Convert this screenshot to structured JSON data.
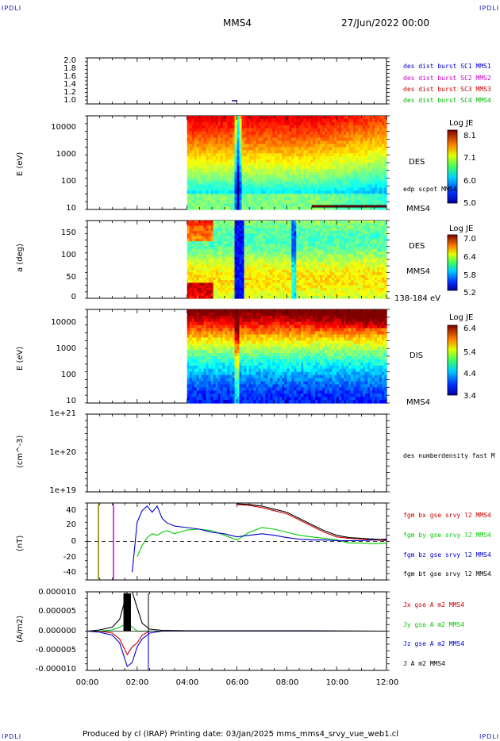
{
  "header": {
    "corner_tl": "IPDLI",
    "corner_tr": "IPDLI",
    "corner_bl": "IPDLI",
    "corner_br": "IPDLI",
    "spacecraft": "MMS4",
    "datetime": "27/Jun/2022 00:00"
  },
  "footer": {
    "text": "Produced by cl (IRAP)   Printing date: 03/Jan/2025   mms_mms4_srvy_vue_web1.cl"
  },
  "colors": {
    "mms1": "#0000cc",
    "mms2": "#cc00cc",
    "mms3": "#cc0000",
    "mms4": "#00bb00",
    "bx": "#cc0000",
    "by": "#00cc00",
    "bz": "#0000cc",
    "bt": "#000000"
  },
  "chart_data": [
    {
      "type": "line",
      "title": "",
      "ylabel": "",
      "ylim": [
        1.0,
        2.0
      ],
      "yticks": [
        "2.0",
        "1.8",
        "1.6",
        "1.4",
        "1.2",
        "1.0"
      ],
      "legend": [
        {
          "label": "des dist burst SC1 MMS1",
          "color": "#0000cc"
        },
        {
          "label": "des dist burst SC2 MMS2",
          "color": "#cc00cc"
        },
        {
          "label": "des dist burst SC3 MMS3",
          "color": "#cc0000"
        },
        {
          "label": "des dist burst SC4 MMS4",
          "color": "#00bb00"
        }
      ]
    },
    {
      "type": "heatmap",
      "ylabel": "E (eV)",
      "yscale": "log",
      "ylim": [
        10,
        30000
      ],
      "yticks": [
        "10000",
        "1000",
        "100",
        "10"
      ],
      "instrument": "DES",
      "spacecraft": "MMS4",
      "overlay_label": "edp scpot MMS4",
      "colorbar": {
        "title": "Log JE",
        "ticks": [
          "8.1",
          "7.1",
          "6.0",
          "5.0"
        ],
        "range": [
          5.0,
          8.1
        ]
      },
      "data_start_hour": 4.0
    },
    {
      "type": "heatmap",
      "ylabel": "a (deg)",
      "ylim": [
        0,
        180
      ],
      "yticks": [
        "150",
        "100",
        "50",
        "0"
      ],
      "instrument": "DES",
      "spacecraft": "MMS4",
      "energy_range": "138-184 eV",
      "colorbar": {
        "title": "Log JE",
        "ticks": [
          "7.0",
          "6.4",
          "5.8",
          "5.2"
        ],
        "range": [
          5.2,
          7.0
        ]
      },
      "data_start_hour": 4.0
    },
    {
      "type": "heatmap",
      "ylabel": "E (eV)",
      "yscale": "log",
      "ylim": [
        10,
        30000
      ],
      "yticks": [
        "10000",
        "1000",
        "100",
        "10"
      ],
      "instrument": "DIS",
      "spacecraft": "MMS4",
      "colorbar": {
        "title": "Log JE",
        "ticks": [
          "6.4",
          "5.4",
          "4.4",
          "3.4"
        ],
        "range": [
          3.4,
          6.4
        ]
      },
      "data_start_hour": 4.0
    },
    {
      "type": "line",
      "ylabel": "(cm^-3)",
      "yscale": "log",
      "yticks": [
        "1e+21",
        "1e+20",
        "1e+19"
      ],
      "legend": [
        {
          "label": "des numberdensity fast M",
          "color": "#000000"
        }
      ]
    },
    {
      "type": "line",
      "ylabel": "(nT)",
      "ylim": [
        -50,
        50
      ],
      "yticks": [
        "40",
        "20",
        "0",
        "-20",
        "-40"
      ],
      "x": [
        0.0,
        0.4,
        0.5,
        1.0,
        1.1,
        1.8,
        2.0,
        2.2,
        2.4,
        2.6,
        2.8,
        3.0,
        3.2,
        3.5,
        4.0,
        4.5,
        5.0,
        5.5,
        6.0,
        6.5,
        7.0,
        7.5,
        8.0,
        8.5,
        9.0,
        9.5,
        10.0,
        10.5,
        11.0,
        11.5,
        12.0
      ],
      "series": [
        {
          "name": "fgm bx gse srvy l2 MMS4",
          "color": "#cc0000",
          "values": [
            null,
            null,
            null,
            null,
            null,
            null,
            null,
            null,
            null,
            null,
            null,
            null,
            null,
            null,
            null,
            null,
            null,
            null,
            48,
            47,
            44,
            40,
            36,
            28,
            20,
            12,
            6,
            4,
            3,
            2,
            1
          ]
        },
        {
          "name": "fgm by gse srvy l2 MMS4",
          "color": "#00cc00",
          "values": [
            null,
            null,
            null,
            null,
            null,
            null,
            -20,
            -5,
            5,
            10,
            8,
            12,
            14,
            10,
            15,
            16,
            14,
            8,
            2,
            12,
            18,
            16,
            12,
            8,
            6,
            4,
            2,
            -2,
            -2,
            -3,
            -2
          ]
        },
        {
          "name": "fgm bz gse srvy l2 MMS4",
          "color": "#0000cc",
          "values": [
            null,
            null,
            null,
            null,
            null,
            -40,
            25,
            40,
            46,
            38,
            46,
            30,
            24,
            20,
            18,
            16,
            12,
            10,
            6,
            8,
            10,
            8,
            5,
            3,
            2,
            2,
            1,
            1,
            1,
            2,
            3
          ]
        },
        {
          "name": "fgm bt gse srvy l2 MMS4",
          "color": "#000000",
          "values": [
            null,
            null,
            null,
            null,
            null,
            null,
            null,
            null,
            null,
            null,
            null,
            null,
            null,
            null,
            null,
            null,
            null,
            null,
            49,
            48,
            46,
            42,
            38,
            30,
            22,
            14,
            8,
            5,
            4,
            3,
            2
          ]
        }
      ]
    },
    {
      "type": "line",
      "ylabel": "(A/m2)",
      "ylim": [
        -1e-05,
        1e-05
      ],
      "yticks": [
        "0.000010",
        "0.000005",
        "0.000000",
        "-0.000005",
        "-0.000010"
      ],
      "x": [
        0.0,
        0.5,
        1.0,
        1.3,
        1.6,
        1.8,
        2.0,
        2.2,
        2.5,
        3.0,
        4.0,
        6.0,
        8.0,
        9.0,
        12.0
      ],
      "series": [
        {
          "name": "Jx gse A m2 MMS4",
          "color": "#cc0000",
          "values": [
            0,
            0,
            -5e-07,
            -2e-06,
            -6e-06,
            -4e-06,
            -3e-06,
            -1e-06,
            0,
            0,
            0,
            0,
            0,
            0,
            0
          ]
        },
        {
          "name": "Jy gse A m2 MMS4",
          "color": "#00cc00",
          "values": [
            0,
            0,
            3e-07,
            1e-06,
            2e-06,
            1e-06,
            0,
            0,
            0,
            0,
            0,
            0,
            0,
            0,
            0
          ]
        },
        {
          "name": "Jz gse A m2 MMS4",
          "color": "#0000cc",
          "values": [
            0,
            -3e-07,
            -1e-06,
            -3e-06,
            -9e-06,
            -8e-06,
            -4e-06,
            -2e-06,
            -5e-07,
            0,
            0,
            0,
            0,
            0,
            0
          ]
        },
        {
          "name": "J A m2 MMS4",
          "color": "#000000",
          "values": [
            0,
            3e-07,
            1e-06,
            3e-06,
            1e-05,
            1e-05,
            6e-06,
            2e-06,
            5e-07,
            2e-07,
            1e-07,
            1e-07,
            1e-07,
            1e-07,
            0
          ]
        }
      ],
      "xaxis": {
        "ticks": [
          "00:00",
          "02:00",
          "04:00",
          "06:00",
          "08:00",
          "10:00",
          "12:00"
        ],
        "range_hours": [
          0,
          12
        ]
      }
    }
  ]
}
